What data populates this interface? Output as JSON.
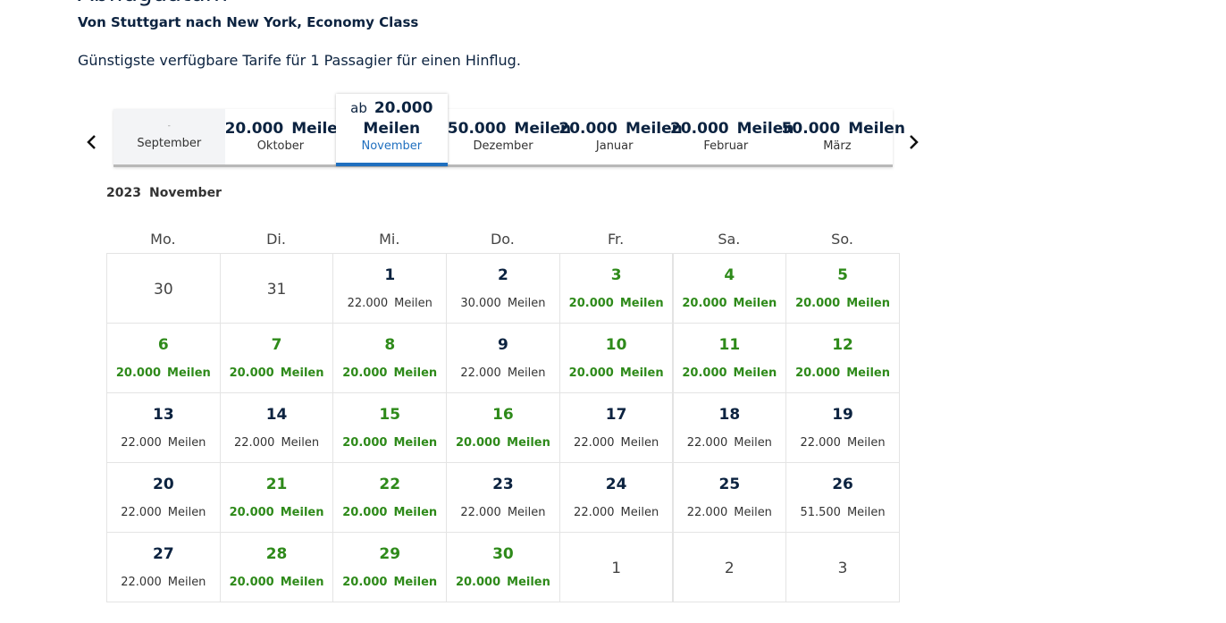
{
  "header": {
    "title": "Abflugdatum",
    "route": "Von Stuttgart nach New York, Economy Class",
    "note": "Günstigste verfügbare Tarife für 1 Passagier für einen Hinflug."
  },
  "months": [
    {
      "amount": "-",
      "month": "September"
    },
    {
      "amount": "20.000",
      "unit": "Meilen",
      "month": "Oktober"
    },
    {
      "prefix": "ab",
      "amount": "20.000",
      "unit": "Meilen",
      "month": "November",
      "selected": true
    },
    {
      "amount": "50.000",
      "unit": "Meilen",
      "month": "Dezember"
    },
    {
      "amount": "20.000",
      "unit": "Meilen",
      "month": "Januar"
    },
    {
      "amount": "20.000",
      "unit": "Meilen",
      "month": "Februar"
    },
    {
      "amount": "50.000",
      "unit": "Meilen",
      "month": "März"
    }
  ],
  "calendar": {
    "year": "2023",
    "month": "November",
    "weekdays": [
      "Mo.",
      "Di.",
      "Mi.",
      "Do.",
      "Fr.",
      "Sa.",
      "So."
    ],
    "weeks": [
      [
        {
          "day": 30,
          "outside": true
        },
        {
          "day": 31,
          "outside": true
        },
        {
          "day": 1,
          "amount": "22.000",
          "unit": "Meilen"
        },
        {
          "day": 2,
          "amount": "30.000",
          "unit": "Meilen"
        },
        {
          "day": 3,
          "amount": "20.000",
          "unit": "Meilen",
          "best": true
        },
        {
          "day": 4,
          "amount": "20.000",
          "unit": "Meilen",
          "best": true
        },
        {
          "day": 5,
          "amount": "20.000",
          "unit": "Meilen",
          "best": true
        }
      ],
      [
        {
          "day": 6,
          "amount": "20.000",
          "unit": "Meilen",
          "best": true
        },
        {
          "day": 7,
          "amount": "20.000",
          "unit": "Meilen",
          "best": true
        },
        {
          "day": 8,
          "amount": "20.000",
          "unit": "Meilen",
          "best": true
        },
        {
          "day": 9,
          "amount": "22.000",
          "unit": "Meilen"
        },
        {
          "day": 10,
          "amount": "20.000",
          "unit": "Meilen",
          "best": true
        },
        {
          "day": 11,
          "amount": "20.000",
          "unit": "Meilen",
          "best": true
        },
        {
          "day": 12,
          "amount": "20.000",
          "unit": "Meilen",
          "best": true
        }
      ],
      [
        {
          "day": 13,
          "amount": "22.000",
          "unit": "Meilen"
        },
        {
          "day": 14,
          "amount": "22.000",
          "unit": "Meilen"
        },
        {
          "day": 15,
          "amount": "20.000",
          "unit": "Meilen",
          "best": true
        },
        {
          "day": 16,
          "amount": "20.000",
          "unit": "Meilen",
          "best": true
        },
        {
          "day": 17,
          "amount": "22.000",
          "unit": "Meilen"
        },
        {
          "day": 18,
          "amount": "22.000",
          "unit": "Meilen"
        },
        {
          "day": 19,
          "amount": "22.000",
          "unit": "Meilen"
        }
      ],
      [
        {
          "day": 20,
          "amount": "22.000",
          "unit": "Meilen"
        },
        {
          "day": 21,
          "amount": "20.000",
          "unit": "Meilen",
          "best": true
        },
        {
          "day": 22,
          "amount": "20.000",
          "unit": "Meilen",
          "best": true
        },
        {
          "day": 23,
          "amount": "22.000",
          "unit": "Meilen"
        },
        {
          "day": 24,
          "amount": "22.000",
          "unit": "Meilen"
        },
        {
          "day": 25,
          "amount": "22.000",
          "unit": "Meilen"
        },
        {
          "day": 26,
          "amount": "51.500",
          "unit": "Meilen"
        }
      ],
      [
        {
          "day": 27,
          "amount": "22.000",
          "unit": "Meilen"
        },
        {
          "day": 28,
          "amount": "20.000",
          "unit": "Meilen",
          "best": true
        },
        {
          "day": 29,
          "amount": "20.000",
          "unit": "Meilen",
          "best": true
        },
        {
          "day": 30,
          "amount": "20.000",
          "unit": "Meilen",
          "best": true
        },
        {
          "day": 1,
          "outside": true
        },
        {
          "day": 2,
          "outside": true
        },
        {
          "day": 3,
          "outside": true
        }
      ]
    ]
  }
}
